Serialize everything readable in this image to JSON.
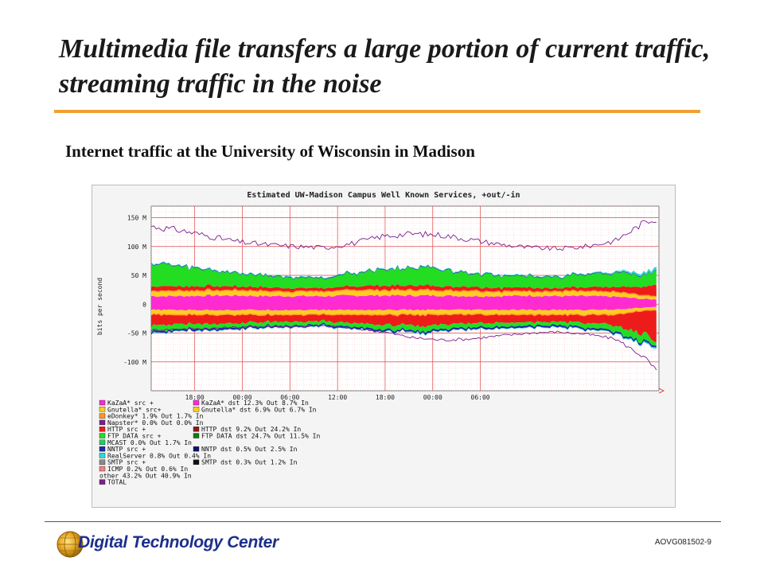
{
  "slide": {
    "title": "Multimedia file transfers a large portion of current traffic, streaming traffic in the noise",
    "subtitle": "Internet traffic at the University of Wisconsin in Madison",
    "slide_code": "AOVG081502-9",
    "logo_text": "Digital Technology Center"
  },
  "colors": {
    "title_rule": "#f0a030",
    "total": "#7a1f8c",
    "kazaa": "#ff2ad4",
    "gnutella": "#ffcc22",
    "edonkey": "#ff9a1a",
    "http": "#ee1b1b",
    "ftp": "#22dd22",
    "nntp": "#1a2aa8",
    "realserver": "#30d6d6",
    "grid_minor": "#ffb0b0",
    "grid_major": "#e04848",
    "logo_text": "#1c2f8c"
  },
  "chart_data": {
    "type": "area",
    "title": "Estimated UW-Madison Campus Well Known Services, +out/-in",
    "ylabel": "bits per second",
    "xlabel": "",
    "x_tick_labels": [
      "18:00",
      "00:00",
      "06:00",
      "12:00",
      "18:00",
      "00:00",
      "06:00"
    ],
    "y_tick_labels": [
      "150 M",
      "100 M",
      "50 M",
      "0",
      "-50 M",
      "-100 M"
    ],
    "ylim": [
      -150,
      170
    ],
    "grid": true,
    "legend_position": "bottom",
    "x_hours": [
      0,
      4,
      8,
      12,
      16,
      20,
      24,
      28,
      32,
      36,
      40,
      44,
      48,
      52,
      56,
      60,
      64,
      68,
      70
    ],
    "series": [
      {
        "name": "KaZaA",
        "key": "kazaa",
        "out": [
          14,
          14,
          15,
          15,
          14,
          14,
          14,
          15,
          15,
          15,
          15,
          14,
          14,
          15,
          14,
          14,
          13,
          9,
          8
        ],
        "in": [
          -10,
          -10,
          -10,
          -10,
          -10,
          -10,
          -10,
          -10,
          -10,
          -10,
          -10,
          -10,
          -10,
          -10,
          -10,
          -10,
          -9,
          -6,
          -5
        ]
      },
      {
        "name": "Gnutella",
        "key": "gnutella",
        "out": [
          8,
          8,
          8,
          8,
          7,
          7,
          7,
          8,
          8,
          8,
          8,
          8,
          7,
          7,
          7,
          7,
          7,
          5,
          4
        ],
        "in": [
          -7,
          -7,
          -7,
          -7,
          -7,
          -7,
          -7,
          -7,
          -7,
          -7,
          -7,
          -7,
          -7,
          -7,
          -7,
          -7,
          -7,
          -4,
          -4
        ]
      },
      {
        "name": "eDonkey",
        "key": "edonkey",
        "out": [
          2,
          2,
          2,
          2,
          2,
          2,
          2,
          2,
          2,
          2,
          2,
          2,
          2,
          2,
          2,
          2,
          2,
          2,
          2
        ],
        "in": [
          -2,
          -2,
          -2,
          -2,
          -2,
          -2,
          -2,
          -2,
          -2,
          -2,
          -2,
          -2,
          -2,
          -2,
          -2,
          -2,
          -2,
          -2,
          -2
        ]
      },
      {
        "name": "HTTP",
        "key": "http",
        "out": [
          8,
          7,
          7,
          6,
          6,
          5,
          5,
          6,
          7,
          7,
          7,
          6,
          6,
          6,
          5,
          6,
          8,
          14,
          20
        ],
        "in": [
          -18,
          -16,
          -15,
          -14,
          -12,
          -11,
          -11,
          -14,
          -17,
          -18,
          -17,
          -15,
          -13,
          -12,
          -11,
          -13,
          -18,
          -40,
          -52
        ]
      },
      {
        "name": "FTP DATA",
        "key": "ftp",
        "out": [
          40,
          34,
          28,
          22,
          20,
          18,
          18,
          22,
          28,
          30,
          28,
          24,
          22,
          20,
          18,
          22,
          24,
          20,
          24
        ],
        "in": [
          -10,
          -9,
          -8,
          -7,
          -7,
          -6,
          -6,
          -7,
          -8,
          -9,
          -8,
          -7,
          -7,
          -6,
          -6,
          -8,
          -10,
          -14,
          -4
        ]
      },
      {
        "name": "NNTP",
        "key": "nntp",
        "out": [
          1,
          1,
          1,
          1,
          1,
          1,
          1,
          1,
          1,
          1,
          1,
          1,
          1,
          1,
          1,
          1,
          1,
          1,
          1
        ],
        "in": [
          -3,
          -3,
          -3,
          -3,
          -3,
          -3,
          -3,
          -3,
          -3,
          -3,
          -3,
          -3,
          -3,
          -3,
          -3,
          -3,
          -3,
          -3,
          -3
        ]
      },
      {
        "name": "RealServer",
        "key": "realserver",
        "out": [
          1,
          1,
          1,
          1,
          1,
          1,
          1,
          1,
          1,
          1,
          1,
          1,
          1,
          1,
          1,
          1,
          2,
          4,
          5
        ],
        "in": [
          -1,
          -1,
          -1,
          -1,
          -1,
          -1,
          -1,
          -1,
          -1,
          -1,
          -1,
          -1,
          -1,
          -1,
          -1,
          -1,
          -1,
          -2,
          -2
        ]
      },
      {
        "name": "TOTAL",
        "key": "total",
        "out": [
          135,
          128,
          118,
          108,
          103,
          100,
          98,
          106,
          118,
          122,
          120,
          112,
          104,
          98,
          96,
          100,
          110,
          142,
          150
        ],
        "in": [
          -45,
          -43,
          -42,
          -40,
          -39,
          -38,
          -38,
          -42,
          -48,
          -58,
          -62,
          -60,
          -55,
          -50,
          -48,
          -52,
          -60,
          -92,
          -120
        ]
      }
    ],
    "legend": [
      {
        "key": "kazaa",
        "text": "KaZaA* src    +"
      },
      {
        "key": "kazaa",
        "text": "KaZaA* dst   12.3% Out  8.7% In"
      },
      {
        "key": "gnutella",
        "text": "Gnutella* src+"
      },
      {
        "key": "gnutella",
        "text": "Gnutella* dst  6.9% Out  6.7% In"
      },
      {
        "key": "edonkey",
        "text": "eDonkey*  1.9% Out  1.7% In"
      },
      {
        "key": "total",
        "text": "Napster*  0.0% Out  0.0% In"
      },
      {
        "key": "http",
        "text": "HTTP src     +"
      },
      {
        "key": "http_dst",
        "text": "HTTP dst      9.2% Out  24.2% In"
      },
      {
        "key": "ftp",
        "text": "FTP DATA src +"
      },
      {
        "key": "ftp_dst",
        "text": "FTP DATA dst  24.7% Out  11.5% In"
      },
      {
        "key": "mcast",
        "text": "MCAST  0.0% Out  1.7% In"
      },
      {
        "key": "nntp",
        "text": "NNTP src     +"
      },
      {
        "key": "nntp_dst",
        "text": "NNTP dst      0.5% Out  2.5% In"
      },
      {
        "key": "realserver",
        "text": "RealServer  0.8% Out  0.4% In"
      },
      {
        "key": "smtp",
        "text": "SMTP src     +"
      },
      {
        "key": "smtp_dst",
        "text": "SMTP dst      0.3% Out  1.2% In"
      },
      {
        "key": "icmp",
        "text": "ICMP  0.2% Out  0.6% In"
      },
      {
        "key": "none",
        "text": "other 43.2% Out  40.9% In"
      },
      {
        "key": "total",
        "text": "TOTAL"
      }
    ],
    "legend_colors": {
      "kazaa": "#ff2ad4",
      "gnutella": "#ffcc22",
      "edonkey": "#ff9a1a",
      "total": "#7a1f8c",
      "http": "#ee1b1b",
      "http_dst": "#8b1a1a",
      "ftp": "#22dd22",
      "ftp_dst": "#0e7a0e",
      "mcast": "#22cc66",
      "nntp": "#1a2aa8",
      "nntp_dst": "#0b1466",
      "realserver": "#30d6d6",
      "smtp": "#8a8a8a",
      "smtp_dst": "#111111",
      "icmp": "#f08080",
      "none": "#f4f4f4"
    }
  }
}
